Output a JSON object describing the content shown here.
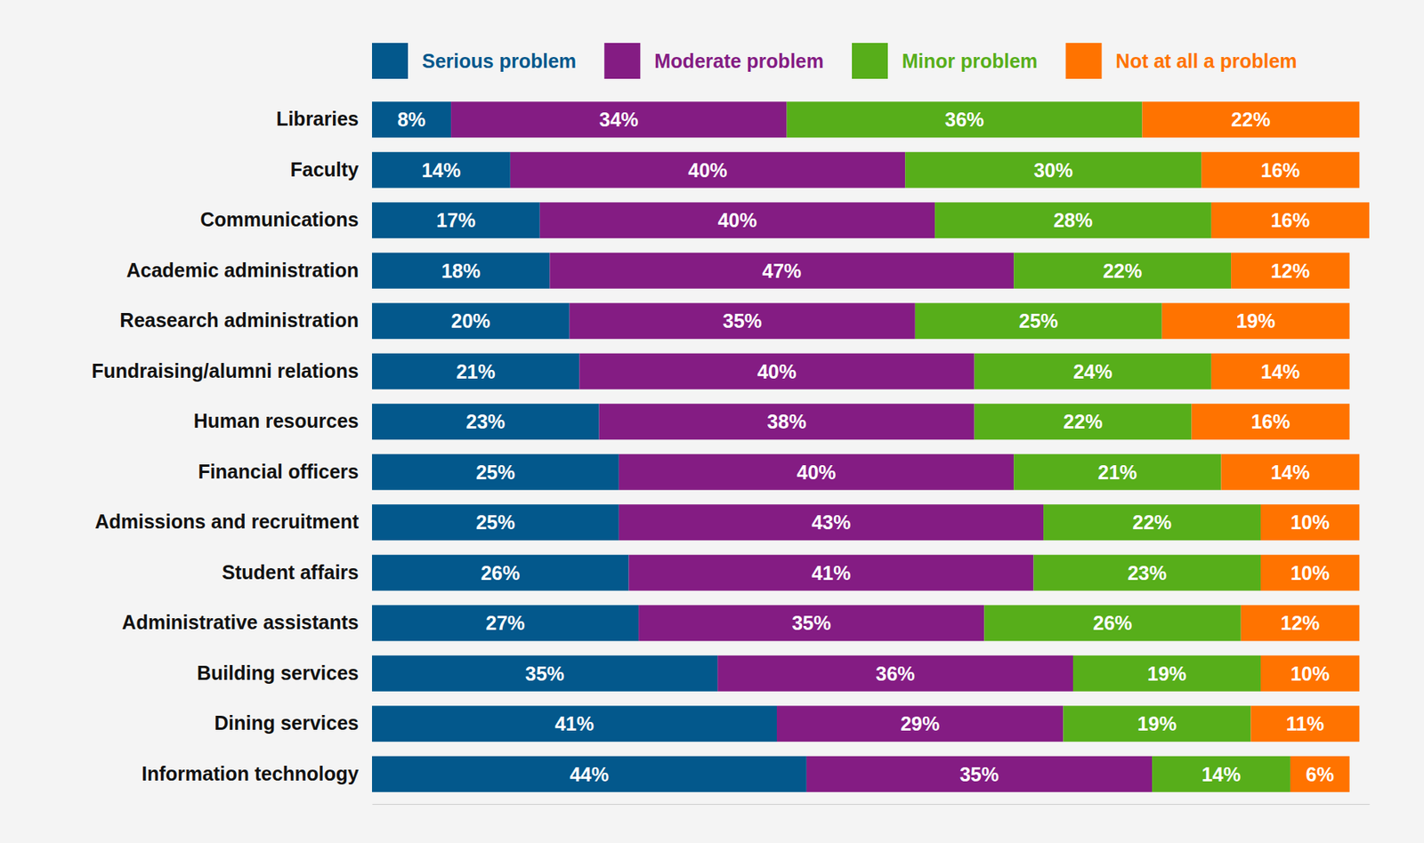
{
  "chart_data": {
    "type": "bar",
    "orientation": "horizontal",
    "stacked": true,
    "data_labels": true,
    "legend": "top",
    "tick_labels": "y",
    "grid": false,
    "xlim": [
      0,
      101
    ],
    "categories": [
      "Libraries",
      "Faculty",
      "Communications",
      "Academic administration",
      "Reasearch administration",
      "Fundraising/alumni relations",
      "Human resources",
      "Financial officers",
      "Admissions and recruitment",
      "Student affairs",
      "Administrative assistants",
      "Building services",
      "Dining services",
      "Information technology"
    ],
    "series": [
      {
        "name": "Serious problem",
        "color": "#03588c",
        "values": [
          8,
          14,
          17,
          18,
          20,
          21,
          23,
          25,
          25,
          26,
          27,
          35,
          41,
          44
        ],
        "value_labels": [
          "8%",
          "14%",
          "17%",
          "18%",
          "20%",
          "21%",
          "23%",
          "25%",
          "25%",
          "26%",
          "27%",
          "35%",
          "41%",
          "44%"
        ]
      },
      {
        "name": "Moderate problem",
        "color": "#841c83",
        "values": [
          34,
          40,
          40,
          47,
          35,
          40,
          38,
          40,
          43,
          41,
          35,
          36,
          29,
          35
        ],
        "value_labels": [
          "34%",
          "40%",
          "40%",
          "47%",
          "35%",
          "40%",
          "38%",
          "40%",
          "43%",
          "41%",
          "35%",
          "36%",
          "29%",
          "35%"
        ]
      },
      {
        "name": "Minor problem",
        "color": "#57ae1a",
        "values": [
          36,
          30,
          28,
          22,
          25,
          24,
          22,
          21,
          22,
          23,
          26,
          19,
          19,
          14
        ],
        "value_labels": [
          "36%",
          "30%",
          "28%",
          "22%",
          "25%",
          "24%",
          "22%",
          "21%",
          "22%",
          "23%",
          "26%",
          "19%",
          "19%",
          "14%"
        ]
      },
      {
        "name": "Not at all a problem",
        "color": "#ff7300",
        "values": [
          22,
          16,
          16,
          12,
          19,
          14,
          16,
          14,
          10,
          10,
          12,
          10,
          11,
          6
        ],
        "value_labels": [
          "22%",
          "16%",
          "16%",
          "12%",
          "19%",
          "14%",
          "16%",
          "14%",
          "10%",
          "10%",
          "12%",
          "10%",
          "11%",
          "6%"
        ]
      }
    ]
  }
}
